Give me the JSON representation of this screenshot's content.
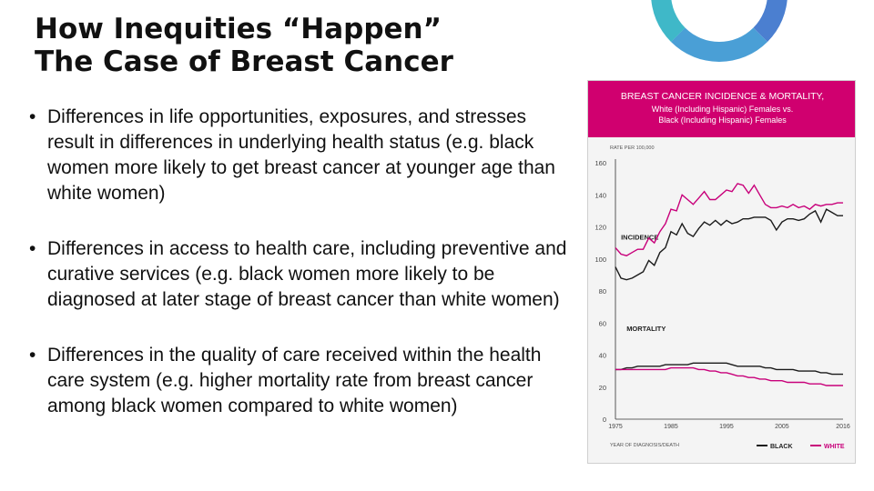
{
  "slide": {
    "title_line1": "How Inequities “Happen”",
    "title_line2": "The Case of Breast Cancer",
    "bullets": [
      "Differences in life opportunities, exposures, and stresses result in differences in underlying health status (e.g. black women more likely to get breast cancer at younger age than white women)",
      "Differences in access to health care, including preventive and curative services (e.g. black women more likely to be diagnosed at later stage of breast cancer than white women)",
      "Differences in the quality of care received within the health care system (e.g. higher mortality rate from breast cancer among black women compared to white women)"
    ],
    "ring_colors": [
      "#3fb8c8",
      "#4b7fd0"
    ]
  },
  "chart_data": {
    "type": "line",
    "title": "BREAST CANCER INCIDENCE & MORTALITY,",
    "subtitle_line1": "White (Including Hispanic) Females vs.",
    "subtitle_line2": "Black (Including Hispanic) Females",
    "ylabel": "RATE PER 100,000",
    "xlabel": "YEAR OF DIAGNOSIS/DEATH",
    "ylim": [
      0,
      160
    ],
    "xlim": [
      1975,
      2016
    ],
    "y_ticks": [
      0,
      20,
      40,
      60,
      80,
      100,
      120,
      140,
      160
    ],
    "x_ticks": [
      1975,
      1985,
      1995,
      2005,
      2016
    ],
    "annotations": {
      "incidence": "INCIDENCE",
      "mortality": "MORTALITY"
    },
    "legend": {
      "position": "bottom-right",
      "entries": [
        "BLACK",
        "WHITE"
      ]
    },
    "colors": {
      "header": "#d0006f",
      "black": "#1a1a1a",
      "white": "#c8007a"
    },
    "x": [
      1975,
      1976,
      1977,
      1978,
      1979,
      1980,
      1981,
      1982,
      1983,
      1984,
      1985,
      1986,
      1987,
      1988,
      1989,
      1990,
      1991,
      1992,
      1993,
      1994,
      1995,
      1996,
      1997,
      1998,
      1999,
      2000,
      2001,
      2002,
      2003,
      2004,
      2005,
      2006,
      2007,
      2008,
      2009,
      2010,
      2011,
      2012,
      2013,
      2014,
      2015,
      2016
    ],
    "series": [
      {
        "name": "BLACK",
        "metric": "incidence",
        "values": [
          95,
          88,
          87,
          88,
          90,
          92,
          99,
          96,
          104,
          107,
          117,
          115,
          122,
          116,
          114,
          119,
          123,
          121,
          124,
          121,
          124,
          122,
          123,
          125,
          125,
          126,
          126,
          126,
          124,
          118,
          123,
          125,
          125,
          124,
          125,
          128,
          130,
          123,
          131,
          129,
          127,
          127
        ]
      },
      {
        "name": "WHITE",
        "metric": "incidence",
        "values": [
          107,
          103,
          102,
          104,
          106,
          106,
          113,
          110,
          117,
          122,
          131,
          130,
          140,
          137,
          134,
          138,
          142,
          137,
          137,
          140,
          143,
          142,
          147,
          146,
          141,
          146,
          140,
          134,
          132,
          132,
          133,
          132,
          134,
          132,
          133,
          131,
          134,
          133,
          134,
          134,
          135,
          135
        ]
      },
      {
        "name": "BLACK",
        "metric": "mortality",
        "values": [
          31,
          31,
          32,
          32,
          33,
          33,
          33,
          33,
          33,
          34,
          34,
          34,
          34,
          34,
          35,
          35,
          35,
          35,
          35,
          35,
          35,
          34,
          33,
          33,
          33,
          33,
          33,
          32,
          32,
          31,
          31,
          31,
          31,
          30,
          30,
          30,
          30,
          29,
          29,
          28,
          28,
          28
        ]
      },
      {
        "name": "WHITE",
        "metric": "mortality",
        "values": [
          31,
          31,
          31,
          31,
          31,
          31,
          31,
          31,
          31,
          31,
          32,
          32,
          32,
          32,
          32,
          31,
          31,
          30,
          30,
          29,
          29,
          28,
          27,
          27,
          26,
          26,
          25,
          25,
          24,
          24,
          24,
          23,
          23,
          23,
          23,
          22,
          22,
          22,
          21,
          21,
          21,
          21
        ]
      }
    ]
  }
}
